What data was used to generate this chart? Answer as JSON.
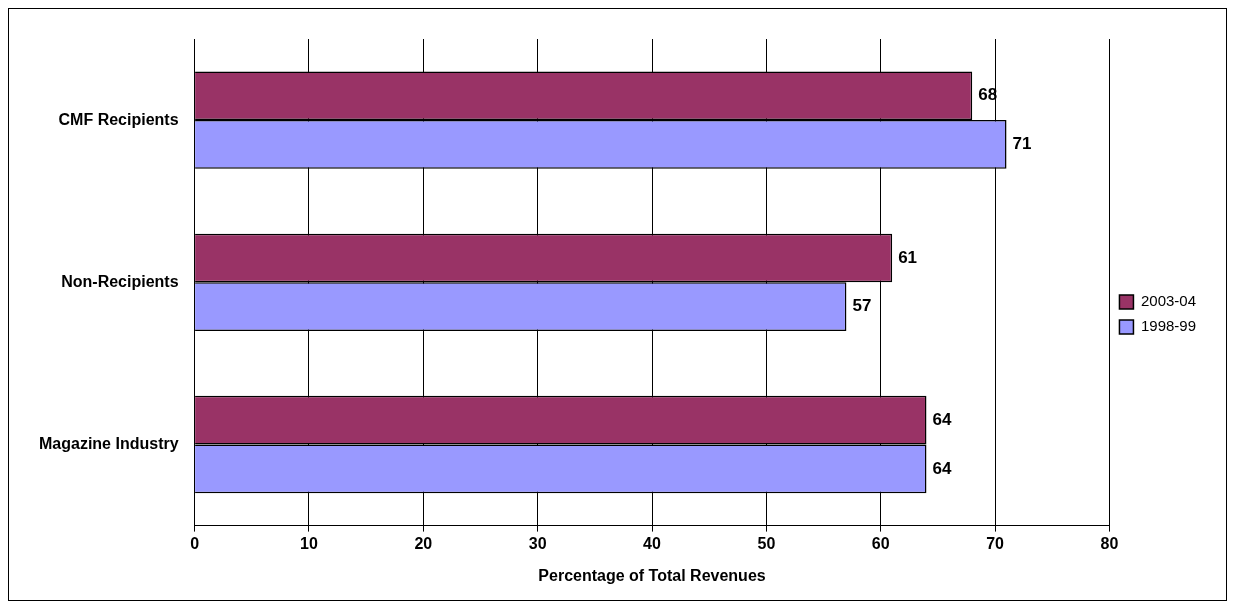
{
  "chart_data": {
    "type": "bar",
    "orientation": "horizontal",
    "xlabel": "Percentage of Total Revenues",
    "categories": [
      "CMF Recipients",
      "Non-Recipients",
      "Magazine Industry"
    ],
    "series": [
      {
        "name": "2003-04",
        "color": "#993366",
        "values": [
          68,
          61,
          64
        ]
      },
      {
        "name": "1998-99",
        "color": "#9999ff",
        "values": [
          71,
          57,
          64
        ]
      }
    ],
    "xlim": [
      0,
      80
    ],
    "xticks": [
      0,
      10,
      20,
      30,
      40,
      50,
      60,
      70,
      80
    ],
    "grid": "x",
    "legend": "right",
    "data_labels": true
  }
}
